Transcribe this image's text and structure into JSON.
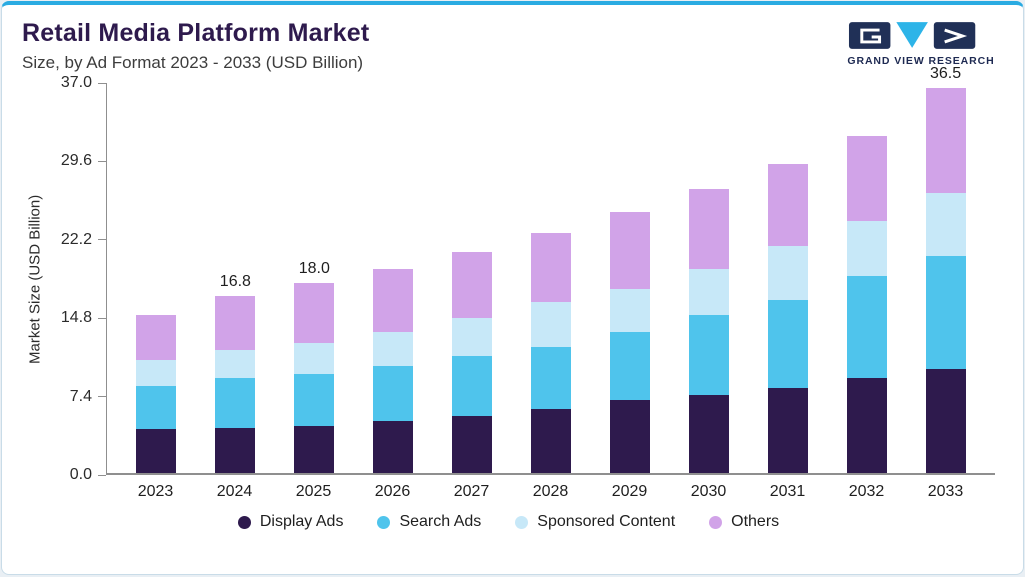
{
  "colors": {
    "top_border": "#2aabe2",
    "card_border": "#c9dce8",
    "title": "#2e1a4d",
    "logo_navy": "#203057",
    "logo_cyan": "#2db4e8",
    "axis_line": "#8f8f8f"
  },
  "header": {
    "title": "Retail Media Platform Market",
    "subtitle": "Size, by Ad Format 2023 - 2033 (USD Billion)"
  },
  "logo": {
    "brand": "GRAND VIEW RESEARCH"
  },
  "chart_data": {
    "type": "bar",
    "stacked": true,
    "title": "Retail Media Platform Market Size, by Ad Format 2023 - 2033 (USD Billion)",
    "xlabel": "",
    "ylabel": "Market Size (USD Billion)",
    "ylim": [
      0,
      37
    ],
    "yticks": [
      0,
      7.4,
      14.8,
      22.2,
      29.6,
      37
    ],
    "ytick_labels": [
      "0.0",
      "7.4",
      "14.8",
      "22.2",
      "29.6",
      "37.0"
    ],
    "grid": false,
    "legend_position": "bottom",
    "categories": [
      "2023",
      "2024",
      "2025",
      "2026",
      "2027",
      "2028",
      "2029",
      "2030",
      "2031",
      "2032",
      "2033"
    ],
    "series": [
      {
        "name": "Display Ads",
        "color": "#2e1a4d",
        "values": [
          4.2,
          4.3,
          4.5,
          4.9,
          5.4,
          6.1,
          6.9,
          7.4,
          8.1,
          9.0,
          9.9
        ]
      },
      {
        "name": "Search Ads",
        "color": "#4fc4ec",
        "values": [
          4.1,
          4.7,
          4.9,
          5.3,
          5.7,
          5.9,
          6.5,
          7.6,
          8.3,
          9.7,
          10.7
        ]
      },
      {
        "name": "Sponsored Content",
        "color": "#c7e8f8",
        "values": [
          2.4,
          2.7,
          2.9,
          3.2,
          3.6,
          4.2,
          4.1,
          4.4,
          5.1,
          5.2,
          6.0
        ]
      },
      {
        "name": "Others",
        "color": "#d1a3e8",
        "values": [
          4.3,
          5.1,
          5.7,
          6.0,
          6.3,
          6.6,
          7.3,
          7.5,
          7.8,
          8.1,
          9.9
        ]
      }
    ],
    "totals": [
      15.0,
      16.8,
      18.0,
      19.4,
      21.0,
      22.8,
      24.8,
      26.9,
      29.3,
      32.0,
      36.5
    ],
    "bar_labels": {
      "2024": "16.8",
      "2025": "18.0",
      "2033": "36.5"
    }
  }
}
